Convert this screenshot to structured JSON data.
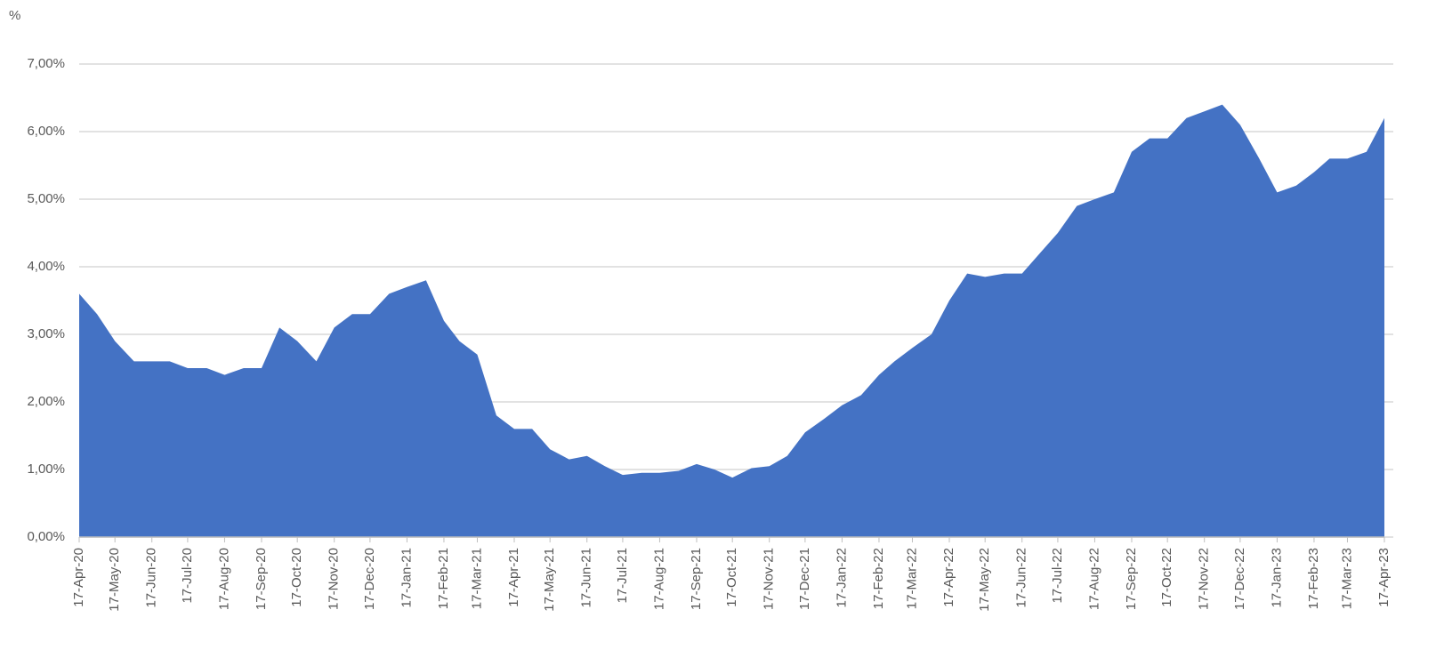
{
  "chart_data": {
    "type": "area",
    "y_axis_title": "%",
    "color": "#4472c4",
    "grid": true,
    "x": [
      "2020-04-17",
      "2020-05-02",
      "2020-05-17",
      "2020-06-02",
      "2020-06-17",
      "2020-07-02",
      "2020-07-17",
      "2020-08-02",
      "2020-08-17",
      "2020-09-02",
      "2020-09-17",
      "2020-10-02",
      "2020-10-17",
      "2020-11-02",
      "2020-11-17",
      "2020-12-02",
      "2020-12-17",
      "2021-01-02",
      "2021-01-17",
      "2021-02-02",
      "2021-02-17",
      "2021-03-02",
      "2021-03-17",
      "2021-04-02",
      "2021-04-17",
      "2021-05-02",
      "2021-05-17",
      "2021-06-02",
      "2021-06-17",
      "2021-07-02",
      "2021-07-17",
      "2021-08-02",
      "2021-08-17",
      "2021-09-02",
      "2021-09-17",
      "2021-10-02",
      "2021-10-17",
      "2021-11-02",
      "2021-11-17",
      "2021-12-02",
      "2021-12-17",
      "2022-01-02",
      "2022-01-17",
      "2022-02-02",
      "2022-02-17",
      "2022-03-02",
      "2022-03-17",
      "2022-04-02",
      "2022-04-17",
      "2022-05-02",
      "2022-05-17",
      "2022-06-02",
      "2022-06-17",
      "2022-07-02",
      "2022-07-17",
      "2022-08-02",
      "2022-08-17",
      "2022-09-02",
      "2022-09-17",
      "2022-10-02",
      "2022-10-17",
      "2022-11-02",
      "2022-11-17",
      "2022-12-02",
      "2022-12-17",
      "2023-01-02",
      "2023-01-17",
      "2023-02-02",
      "2023-02-17",
      "2023-03-02",
      "2023-03-17",
      "2023-04-02",
      "2023-04-17"
    ],
    "values": [
      3.6,
      3.3,
      2.9,
      2.6,
      2.6,
      2.6,
      2.5,
      2.5,
      2.4,
      2.5,
      2.5,
      3.1,
      2.9,
      2.6,
      3.1,
      3.3,
      3.3,
      3.6,
      3.7,
      3.8,
      3.2,
      2.9,
      2.7,
      1.8,
      1.6,
      1.6,
      1.3,
      1.15,
      1.2,
      1.05,
      0.92,
      0.95,
      0.95,
      0.98,
      1.08,
      1.0,
      0.88,
      1.02,
      1.05,
      1.2,
      1.55,
      1.75,
      1.95,
      2.1,
      2.4,
      2.6,
      2.8,
      3.0,
      3.5,
      3.9,
      3.85,
      3.9,
      3.9,
      4.2,
      4.5,
      4.9,
      5.0,
      5.1,
      5.7,
      5.9,
      5.9,
      6.2,
      6.3,
      6.4,
      6.1,
      5.6,
      5.1,
      5.2,
      5.4,
      5.6,
      5.6,
      5.7,
      6.2
    ],
    "xlim": [
      "2020-04-17",
      "2023-04-17"
    ],
    "xticks": [
      {
        "value": "2020-04-17",
        "label": "17-Apr-20"
      },
      {
        "value": "2020-05-17",
        "label": "17-May-20"
      },
      {
        "value": "2020-06-17",
        "label": "17-Jun-20"
      },
      {
        "value": "2020-07-17",
        "label": "17-Jul-20"
      },
      {
        "value": "2020-08-17",
        "label": "17-Aug-20"
      },
      {
        "value": "2020-09-17",
        "label": "17-Sep-20"
      },
      {
        "value": "2020-10-17",
        "label": "17-Oct-20"
      },
      {
        "value": "2020-11-17",
        "label": "17-Nov-20"
      },
      {
        "value": "2020-12-17",
        "label": "17-Dec-20"
      },
      {
        "value": "2021-01-17",
        "label": "17-Jan-21"
      },
      {
        "value": "2021-02-17",
        "label": "17-Feb-21"
      },
      {
        "value": "2021-03-17",
        "label": "17-Mar-21"
      },
      {
        "value": "2021-04-17",
        "label": "17-Apr-21"
      },
      {
        "value": "2021-05-17",
        "label": "17-May-21"
      },
      {
        "value": "2021-06-17",
        "label": "17-Jun-21"
      },
      {
        "value": "2021-07-17",
        "label": "17-Jul-21"
      },
      {
        "value": "2021-08-17",
        "label": "17-Aug-21"
      },
      {
        "value": "2021-09-17",
        "label": "17-Sep-21"
      },
      {
        "value": "2021-10-17",
        "label": "17-Oct-21"
      },
      {
        "value": "2021-11-17",
        "label": "17-Nov-21"
      },
      {
        "value": "2021-12-17",
        "label": "17-Dec-21"
      },
      {
        "value": "2022-01-17",
        "label": "17-Jan-22"
      },
      {
        "value": "2022-02-17",
        "label": "17-Feb-22"
      },
      {
        "value": "2022-03-17",
        "label": "17-Mar-22"
      },
      {
        "value": "2022-04-17",
        "label": "17-Apr-22"
      },
      {
        "value": "2022-05-17",
        "label": "17-May-22"
      },
      {
        "value": "2022-06-17",
        "label": "17-Jun-22"
      },
      {
        "value": "2022-07-17",
        "label": "17-Jul-22"
      },
      {
        "value": "2022-08-17",
        "label": "17-Aug-22"
      },
      {
        "value": "2022-09-17",
        "label": "17-Sep-22"
      },
      {
        "value": "2022-10-17",
        "label": "17-Oct-22"
      },
      {
        "value": "2022-11-17",
        "label": "17-Nov-22"
      },
      {
        "value": "2022-12-17",
        "label": "17-Dec-22"
      },
      {
        "value": "2023-01-17",
        "label": "17-Jan-23"
      },
      {
        "value": "2023-02-17",
        "label": "17-Feb-23"
      },
      {
        "value": "2023-03-17",
        "label": "17-Mar-23"
      },
      {
        "value": "2023-04-17",
        "label": "17-Apr-23"
      }
    ],
    "ylim": [
      0,
      7
    ],
    "yticks": [
      {
        "value": 0,
        "label": "0,00%"
      },
      {
        "value": 1,
        "label": "1,00%"
      },
      {
        "value": 2,
        "label": "2,00%"
      },
      {
        "value": 3,
        "label": "3,00%"
      },
      {
        "value": 4,
        "label": "4,00%"
      },
      {
        "value": 5,
        "label": "5,00%"
      },
      {
        "value": 6,
        "label": "6,00%"
      },
      {
        "value": 7,
        "label": "7,00%"
      }
    ]
  }
}
